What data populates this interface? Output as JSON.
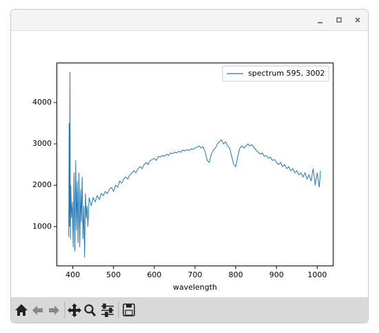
{
  "chart_data": {
    "type": "line",
    "xlabel": "wavelength",
    "legend": "upper right",
    "xlim": [
      360,
      1040
    ],
    "ylim": [
      40,
      4965
    ],
    "xticks": [
      400,
      500,
      600,
      700,
      800,
      900,
      1000
    ],
    "yticks": [
      1000,
      2000,
      3000,
      4000
    ],
    "x": [
      390,
      391,
      392,
      393,
      394,
      395,
      397,
      399,
      401,
      403,
      405,
      407,
      409,
      411,
      413,
      415,
      417,
      419,
      421,
      423,
      425,
      427,
      429,
      431,
      433,
      435,
      437,
      440,
      445,
      450,
      455,
      460,
      465,
      470,
      475,
      480,
      485,
      490,
      495,
      500,
      505,
      510,
      515,
      520,
      525,
      530,
      535,
      540,
      545,
      550,
      555,
      560,
      565,
      570,
      575,
      580,
      585,
      590,
      595,
      600,
      605,
      610,
      615,
      620,
      625,
      630,
      635,
      640,
      645,
      650,
      655,
      660,
      665,
      670,
      675,
      680,
      685,
      690,
      695,
      700,
      705,
      710,
      715,
      720,
      725,
      730,
      735,
      740,
      745,
      750,
      755,
      760,
      765,
      770,
      775,
      780,
      785,
      790,
      795,
      800,
      805,
      810,
      815,
      820,
      825,
      830,
      835,
      840,
      845,
      850,
      855,
      860,
      865,
      870,
      875,
      880,
      885,
      890,
      895,
      900,
      905,
      910,
      915,
      920,
      925,
      930,
      935,
      940,
      945,
      950,
      955,
      960,
      965,
      970,
      975,
      980,
      985,
      990,
      995,
      1000,
      1005,
      1008
    ],
    "series": [
      {
        "name": "spectrum 595, 3002",
        "color": "#1f77b4",
        "values": [
          750,
          3500,
          1000,
          4740,
          700,
          2000,
          1200,
          1600,
          500,
          2300,
          400,
          2600,
          900,
          2100,
          600,
          2300,
          500,
          1900,
          1100,
          2200,
          700,
          1500,
          250,
          1800,
          1200,
          1500,
          1000,
          1700,
          1500,
          1700,
          1600,
          1750,
          1650,
          1800,
          1750,
          1850,
          1800,
          1900,
          1950,
          1850,
          2000,
          1950,
          2100,
          2050,
          2150,
          2200,
          2150,
          2250,
          2300,
          2350,
          2300,
          2400,
          2450,
          2400,
          2500,
          2550,
          2500,
          2600,
          2620,
          2650,
          2600,
          2700,
          2680,
          2720,
          2700,
          2750,
          2720,
          2780,
          2760,
          2800,
          2780,
          2820,
          2800,
          2850,
          2830,
          2860,
          2840,
          2880,
          2870,
          2900,
          2920,
          2950,
          2900,
          2930,
          2800,
          2600,
          2550,
          2750,
          2850,
          2900,
          3000,
          3050,
          3100,
          3000,
          3050,
          2950,
          2900,
          2700,
          2500,
          2450,
          2700,
          2900,
          2950,
          2900,
          2950,
          3000,
          2950,
          2980,
          2900,
          2850,
          2800,
          2750,
          2780,
          2700,
          2720,
          2650,
          2680,
          2600,
          2620,
          2550,
          2500,
          2550,
          2450,
          2500,
          2400,
          2450,
          2350,
          2400,
          2300,
          2350,
          2250,
          2300,
          2200,
          2300,
          2150,
          2250,
          2100,
          2400,
          2000,
          2300,
          1950,
          2350
        ]
      }
    ]
  }
}
